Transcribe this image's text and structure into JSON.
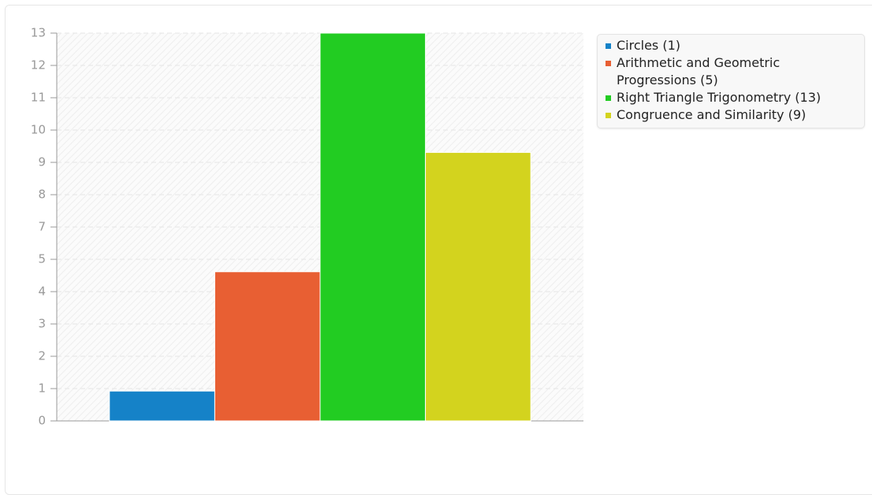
{
  "chart_data": {
    "type": "bar",
    "series": [
      {
        "name": "Circles (1)",
        "color": "#1582c8",
        "values": [
          1
        ]
      },
      {
        "name": "Arithmetic and Geometric Progressions (5)",
        "color": "#e85f33",
        "values": [
          5
        ]
      },
      {
        "name": "Right Triangle Trigonometry (13)",
        "color": "#22cc22",
        "values": [
          13
        ]
      },
      {
        "name": "Congruence and Similarity (9)",
        "color": "#d3d31e",
        "values": [
          9
        ]
      }
    ],
    "ylim": [
      0,
      13
    ],
    "yticks": [
      0,
      {
        "value": 1.0833,
        "label": "1"
      },
      {
        "value": 2.1667,
        "label": "2"
      },
      {
        "value": 3.25,
        "label": "3"
      },
      {
        "value": 4.3333,
        "label": "4"
      },
      {
        "value": 5.4167,
        "label": "5"
      },
      {
        "value": 6.5,
        "label": "7"
      },
      {
        "value": 7.5833,
        "label": "8"
      },
      {
        "value": 8.6667,
        "label": "9"
      },
      {
        "value": 9.75,
        "label": "10"
      },
      {
        "value": 10.8333,
        "label": "11"
      },
      {
        "value": 11.9167,
        "label": "12"
      },
      13
    ],
    "grid": true,
    "legend": "top-right"
  }
}
